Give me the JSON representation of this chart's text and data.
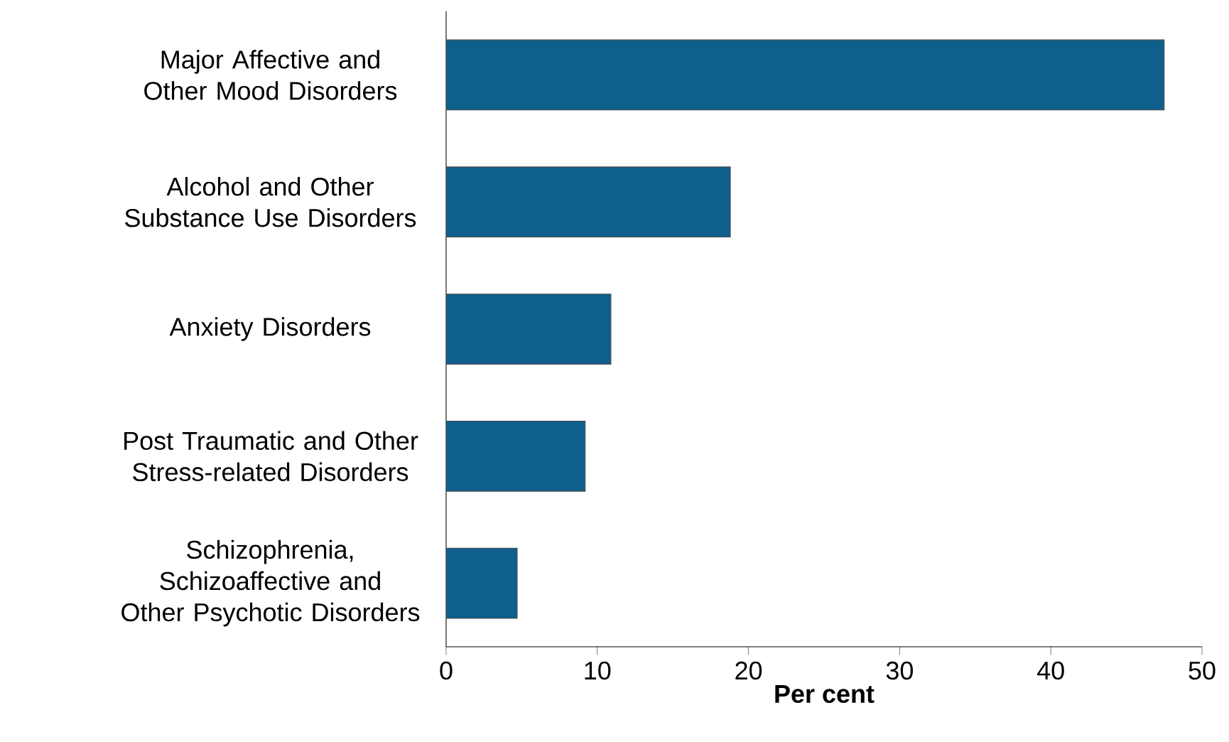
{
  "chart_data": {
    "type": "bar",
    "orientation": "horizontal",
    "xlabel": "Per cent",
    "categories": [
      "Major Affective and Other Mood Disorders",
      "Alcohol and Other Substance Use Disorders",
      "Anxiety Disorders",
      "Post Traumatic and Other Stress-related Disorders",
      "Schizophrenia, Schizoaffective and Other Psychotic Disorders"
    ],
    "values": [
      47.5,
      18.8,
      10.9,
      9.2,
      4.7
    ],
    "color": "#0f5f8c",
    "xlim": [
      0,
      50
    ],
    "xticks": [
      0,
      10,
      20,
      30,
      40,
      50
    ]
  }
}
